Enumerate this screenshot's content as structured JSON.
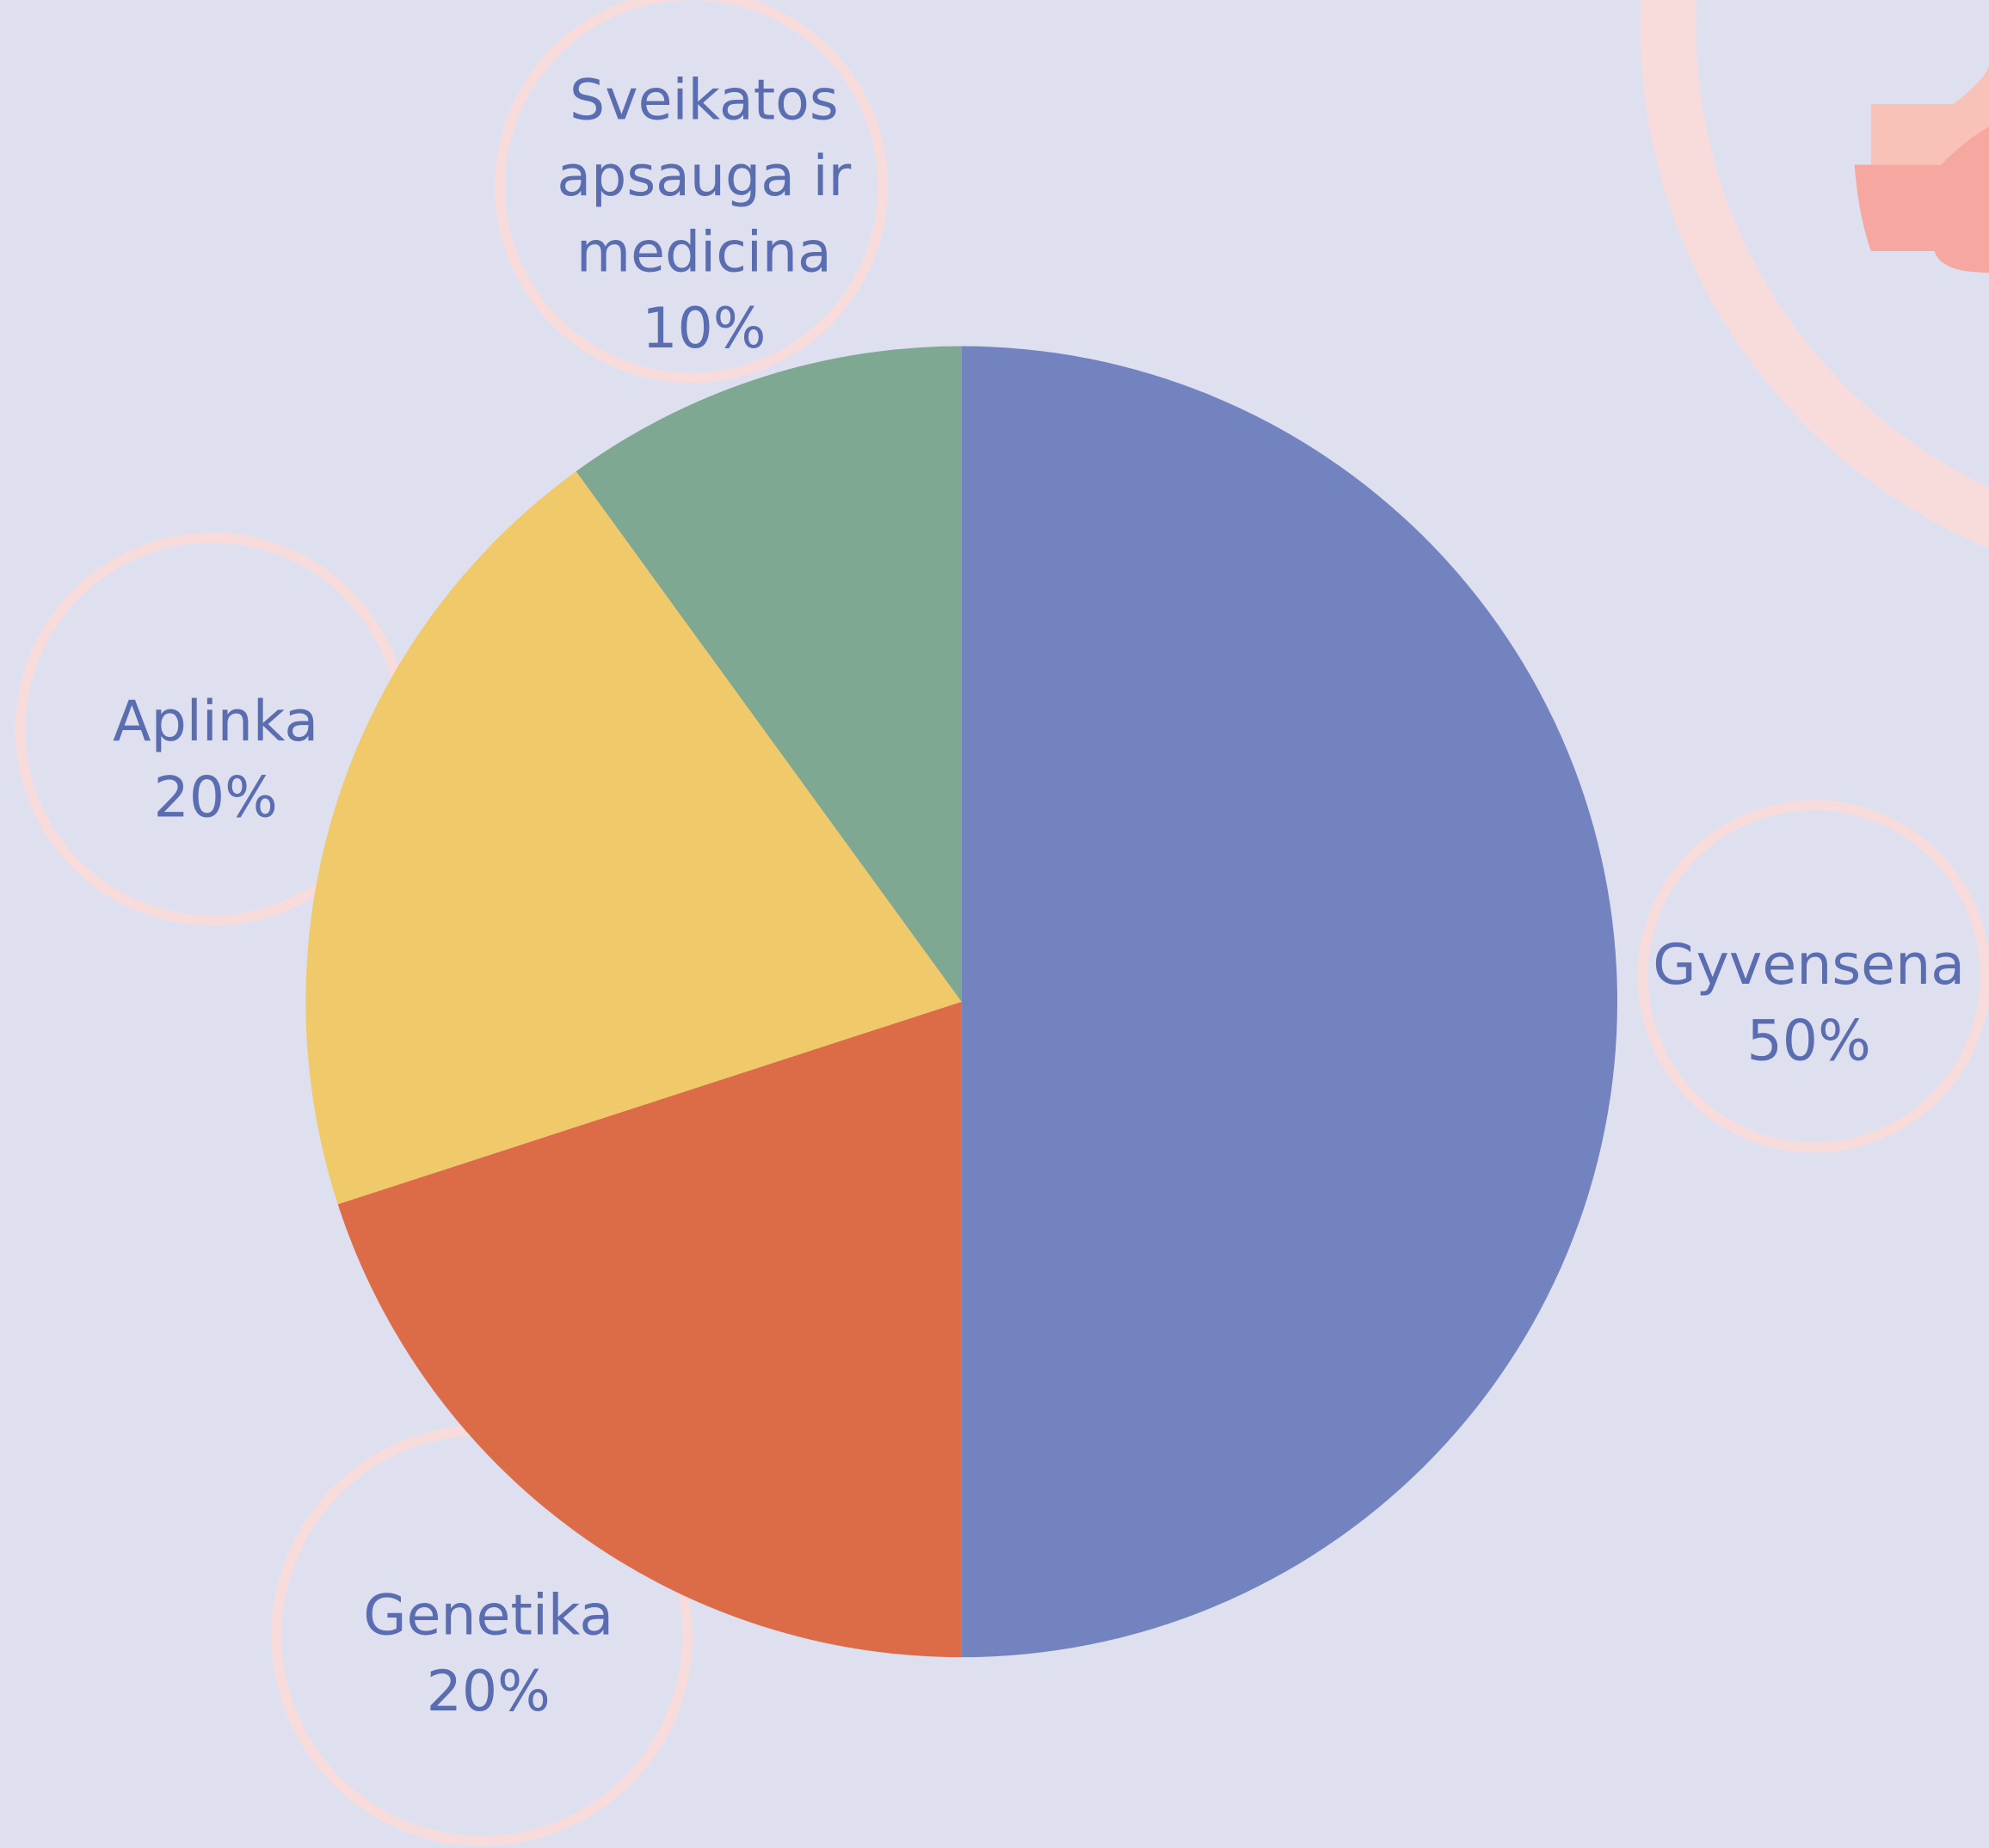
{
  "chart_data": {
    "type": "pie",
    "categories": [
      "Gyvensena",
      "Genetika",
      "Aplinka",
      "Sveikatos apsauga ir medicina"
    ],
    "values": [
      50,
      20,
      20,
      10
    ],
    "value_labels": [
      "50%",
      "20%",
      "20%",
      "10%"
    ],
    "colors": [
      "#7383c0",
      "#dc6c48",
      "#f0c96a",
      "#7ea891"
    ]
  }
}
